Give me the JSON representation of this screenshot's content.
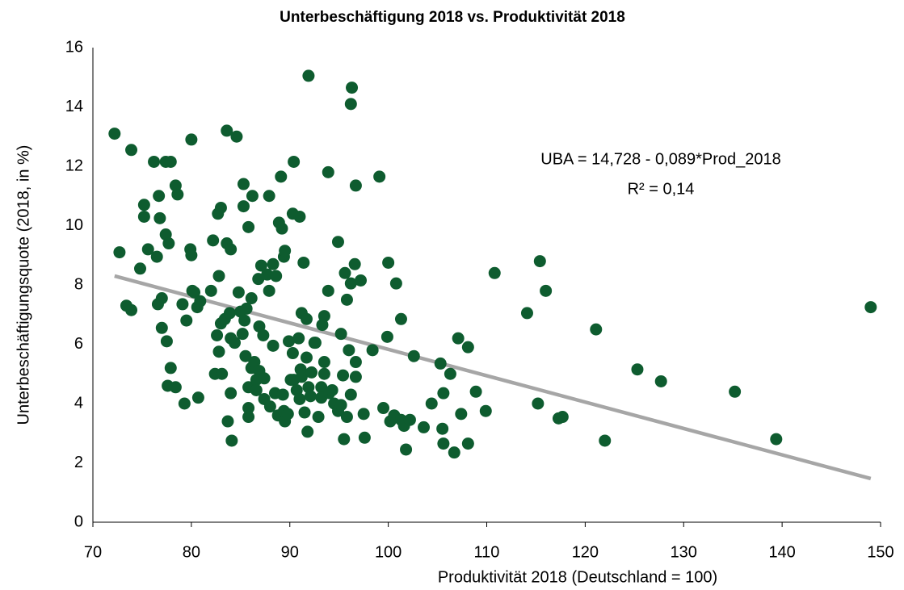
{
  "chart_data": {
    "type": "scatter",
    "title": "Unterbeschäftigung 2018 vs. Produktivität 2018",
    "x_label": "Produktivität 2018 (Deutschland = 100)",
    "y_label": "Unterbeschäftigungsquote (2018, in %)",
    "annotations": [
      "UBA = 14,728 - 0,089*Prod_2018",
      "R² = 0,14"
    ],
    "color": "#0e5c2f",
    "xlim": [
      70,
      150
    ],
    "xticks": [
      70,
      80,
      90,
      100,
      110,
      120,
      130,
      140,
      150
    ],
    "ylim": [
      0,
      16
    ],
    "yticks": [
      0,
      2,
      4,
      6,
      8,
      10,
      12,
      14,
      16
    ],
    "grid": false,
    "trendline": {
      "x": [
        72.2,
        149
      ],
      "y": [
        8.3,
        1.47
      ],
      "color": "#a6a6a6"
    },
    "x": [
      72.2,
      72.7,
      73.4,
      73.9,
      73.9,
      74.8,
      75.2,
      75.2,
      75.6,
      76.2,
      76.5,
      76.6,
      76.7,
      76.8,
      77.0,
      77.0,
      77.4,
      77.4,
      77.5,
      77.7,
      77.6,
      77.9,
      77.9,
      78.4,
      78.6,
      78.4,
      79.1,
      79.3,
      79.5,
      80.0,
      79.9,
      80.0,
      80.1,
      80.3,
      80.6,
      80.7,
      80.9,
      82.0,
      82.2,
      82.4,
      82.6,
      82.7,
      82.8,
      82.8,
      83.0,
      83.0,
      83.1,
      83.4,
      83.6,
      83.6,
      83.7,
      83.9,
      84.0,
      84.0,
      84.0,
      84.1,
      84.4,
      84.6,
      84.8,
      85.0,
      85.2,
      85.3,
      85.3,
      85.4,
      85.5,
      85.6,
      85.8,
      85.8,
      85.8,
      85.8,
      86.1,
      86.1,
      86.2,
      86.4,
      86.6,
      86.6,
      86.8,
      86.9,
      86.9,
      87.1,
      87.3,
      87.4,
      87.4,
      87.7,
      87.9,
      87.9,
      88.0,
      88.3,
      88.3,
      88.5,
      88.6,
      88.8,
      88.9,
      89.1,
      89.2,
      89.3,
      89.4,
      89.4,
      89.5,
      89.5,
      89.8,
      89.9,
      90.1,
      90.3,
      90.3,
      90.4,
      90.4,
      90.7,
      90.9,
      91.0,
      91.0,
      91.1,
      91.2,
      91.2,
      91.4,
      91.5,
      91.7,
      91.7,
      91.8,
      91.9,
      91.9,
      92.1,
      92.2,
      92.5,
      92.6,
      92.9,
      93.2,
      93.2,
      93.3,
      93.5,
      93.5,
      93.5,
      93.9,
      93.9,
      94.0,
      94.3,
      94.5,
      94.9,
      94.9,
      95.2,
      95.2,
      95.4,
      95.5,
      95.6,
      95.8,
      95.8,
      96.0,
      96.2,
      96.2,
      96.2,
      96.3,
      96.6,
      96.7,
      96.7,
      96.7,
      97.2,
      97.5,
      97.6,
      98.4,
      99.1,
      99.5,
      99.9,
      100.0,
      100.2,
      100.6,
      100.8,
      101.3,
      101.3,
      101.6,
      101.8,
      102.2,
      102.6,
      103.6,
      104.4,
      105.3,
      105.5,
      105.6,
      105.6,
      106.3,
      106.7,
      107.1,
      107.4,
      108.1,
      108.1,
      108.9,
      109.9,
      110.8,
      114.1,
      115.2,
      115.4,
      116.0,
      117.3,
      117.7,
      121.1,
      122.0,
      125.3,
      127.7,
      135.2,
      139.4,
      149.0
    ],
    "values": [
      13.1,
      9.1,
      7.3,
      7.15,
      12.55,
      8.55,
      10.7,
      10.3,
      9.2,
      12.15,
      8.95,
      7.35,
      11.0,
      10.25,
      7.55,
      6.55,
      12.15,
      9.7,
      6.1,
      9.4,
      4.6,
      12.15,
      5.2,
      11.35,
      11.05,
      4.55,
      7.35,
      4.0,
      6.8,
      12.9,
      9.2,
      9.0,
      7.8,
      7.75,
      7.25,
      4.2,
      7.45,
      7.8,
      9.5,
      5.0,
      6.3,
      10.4,
      5.75,
      8.3,
      10.6,
      6.7,
      5.0,
      6.85,
      13.2,
      9.4,
      3.4,
      7.05,
      9.2,
      6.2,
      4.35,
      2.75,
      6.05,
      13.0,
      7.75,
      7.1,
      6.35,
      10.65,
      11.4,
      6.8,
      5.6,
      7.2,
      4.55,
      3.55,
      9.95,
      3.85,
      7.55,
      5.2,
      11.0,
      5.4,
      4.8,
      4.45,
      8.2,
      5.1,
      6.6,
      8.65,
      6.3,
      4.85,
      4.15,
      8.35,
      11.0,
      7.8,
      3.9,
      5.95,
      8.7,
      4.35,
      8.3,
      3.6,
      10.1,
      11.65,
      9.9,
      4.3,
      3.75,
      8.95,
      9.15,
      3.4,
      3.65,
      6.1,
      4.8,
      10.4,
      5.7,
      12.15,
      4.8,
      4.45,
      6.2,
      10.3,
      4.15,
      5.15,
      4.9,
      7.05,
      8.75,
      3.7,
      5.55,
      6.85,
      3.05,
      15.05,
      4.55,
      4.25,
      5.05,
      6.05,
      6.05,
      3.55,
      4.55,
      4.2,
      6.65,
      6.95,
      5.4,
      5.0,
      11.8,
      7.8,
      4.35,
      4.45,
      4.0,
      9.45,
      3.75,
      3.95,
      6.35,
      4.95,
      2.8,
      8.4,
      3.55,
      7.5,
      5.8,
      14.1,
      8.05,
      4.3,
      14.65,
      8.7,
      5.4,
      11.35,
      4.9,
      8.15,
      3.65,
      2.85,
      5.8,
      11.65,
      3.85,
      6.25,
      8.75,
      3.4,
      3.6,
      8.05,
      6.85,
      3.45,
      3.25,
      2.45,
      3.45,
      5.6,
      3.2,
      4.0,
      5.35,
      3.15,
      2.65,
      4.35,
      5.0,
      2.35,
      6.2,
      3.65,
      5.9,
      2.65,
      4.4,
      3.75,
      8.4,
      7.05,
      4.0,
      8.8,
      7.8,
      3.5,
      3.55,
      6.5,
      2.75,
      5.15,
      4.75,
      4.4,
      2.8,
      7.25
    ]
  }
}
